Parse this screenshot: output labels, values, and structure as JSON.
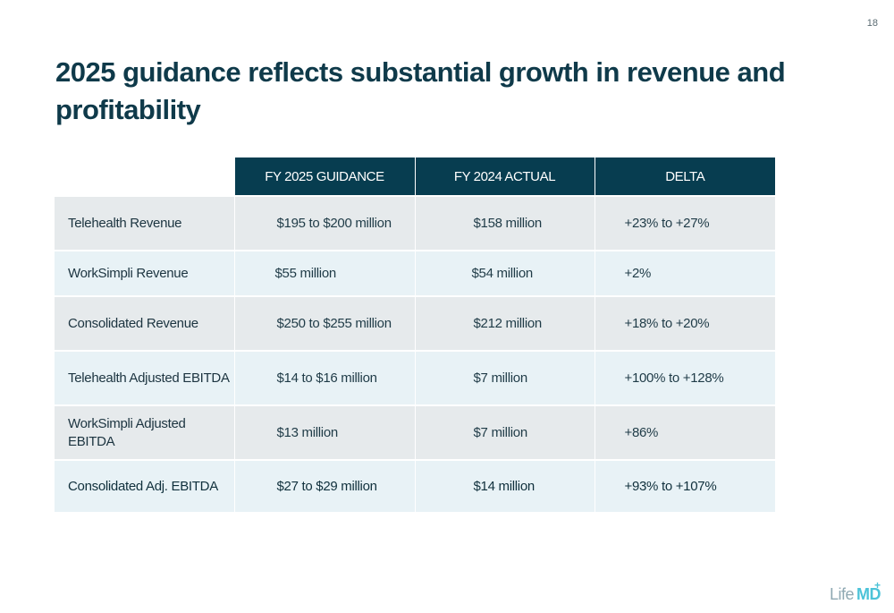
{
  "page_number": "18",
  "title": "2025 guidance reflects substantial growth in revenue and profitability",
  "table": {
    "headers": [
      "",
      "FY 2025 GUIDANCE",
      "FY 2024 ACTUAL",
      "DELTA"
    ],
    "rows": [
      {
        "metric": "Telehealth Revenue",
        "guidance": "$195 to $200 million",
        "actual": "$158 million",
        "delta": "+23% to +27%"
      },
      {
        "metric": "WorkSimpli Revenue",
        "guidance": "$55 million",
        "actual": "$54 million",
        "delta": "+2%"
      },
      {
        "metric": "Consolidated Revenue",
        "guidance": "$250 to $255 million",
        "actual": "$212 million",
        "delta": "+18% to +20%"
      },
      {
        "metric": "Telehealth Adjusted EBITDA",
        "guidance": "$14 to $16 million",
        "actual": "$7 million",
        "delta": "+100% to +128%"
      },
      {
        "metric": "WorkSimpli Adjusted EBITDA",
        "guidance": "$13 million",
        "actual": "$7 million",
        "delta": "+86%"
      },
      {
        "metric": "Consolidated Adj. EBITDA",
        "guidance": "$27 to $29 million",
        "actual": "$14 million",
        "delta": "+93% to +107%"
      }
    ]
  },
  "logo": {
    "part1": "Life",
    "part2": "MD",
    "mark": "+"
  },
  "colors": {
    "header_bg": "#073d50",
    "title": "#0f3a4a",
    "row_odd": "#e6eaec",
    "row_even": "#e8f2f6",
    "logo_accent": "#4cc3d8"
  }
}
